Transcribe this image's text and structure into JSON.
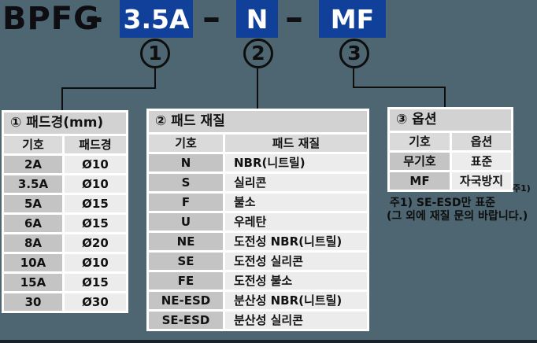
{
  "code": {
    "prefix": "BPFG",
    "separator": "–",
    "segments": [
      {
        "value": "3.5A",
        "ref": "1"
      },
      {
        "value": "N",
        "ref": "2"
      },
      {
        "value": "MF",
        "ref": "3"
      }
    ]
  },
  "callouts": [
    {
      "label": "1"
    },
    {
      "label": "2"
    },
    {
      "label": "3"
    }
  ],
  "tables": [
    {
      "title": "① 패드경(mm)",
      "columns": [
        "기호",
        "패드경"
      ],
      "rows": [
        [
          "2A",
          "Ø10"
        ],
        [
          "3.5A",
          "Ø10"
        ],
        [
          "5A",
          "Ø15"
        ],
        [
          "6A",
          "Ø15"
        ],
        [
          "8A",
          "Ø20"
        ],
        [
          "10A",
          "Ø10"
        ],
        [
          "15A",
          "Ø15"
        ],
        [
          "30",
          "Ø30"
        ]
      ]
    },
    {
      "title": "② 패드 재질",
      "columns": [
        "기호",
        "패드 재질"
      ],
      "rows": [
        [
          "N",
          "NBR(니트릴)"
        ],
        [
          "S",
          "실리콘"
        ],
        [
          "F",
          "불소"
        ],
        [
          "U",
          "우레탄"
        ],
        [
          "NE",
          "도전성 NBR(니트릴)"
        ],
        [
          "SE",
          "도전성 실리콘"
        ],
        [
          "FE",
          "도전성 불소"
        ],
        [
          "NE-ESD",
          "분산성 NBR(니트릴)"
        ],
        [
          "SE-ESD",
          "분산성 실리콘"
        ]
      ]
    },
    {
      "title": "③ 옵션",
      "columns": [
        "기호",
        "옵션"
      ],
      "rows": [
        [
          "무기호",
          "표준"
        ],
        [
          "MF",
          "자국방지"
        ]
      ]
    }
  ],
  "notes": {
    "marker": "주1)",
    "line1": "주1) SE-ESD만 표준",
    "line2": "(그 외에 재질 문의 바랍니다.)"
  },
  "colors": {
    "accent_blue": "#10409a",
    "background": "#4d6671"
  }
}
